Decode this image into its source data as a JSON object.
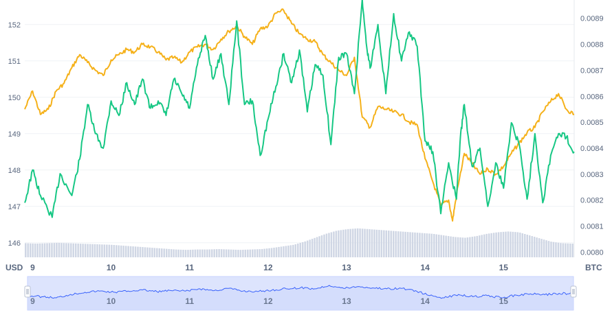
{
  "chart_data": {
    "type": "line",
    "units": {
      "left": "USD",
      "right": "BTC"
    },
    "x_ticks": [
      "9",
      "10",
      "11",
      "12",
      "13",
      "14",
      "15"
    ],
    "y_left": {
      "ticks": [
        "146",
        "147",
        "148",
        "149",
        "150",
        "151",
        "152"
      ],
      "range": [
        145.6,
        152.6
      ]
    },
    "y_right": {
      "ticks": [
        "0.0080",
        "0.0081",
        "0.0082",
        "0.0083",
        "0.0084",
        "0.0085",
        "0.0086",
        "0.0087",
        "0.0088",
        "0.0089"
      ],
      "range": [
        0.00798,
        0.00896
      ]
    },
    "x_range": [
      8.9,
      15.9
    ],
    "grid": true,
    "colors": {
      "usd": "#16c784",
      "btc": "#f5b11a",
      "volume": "#cfd6e4",
      "navigator_line": "#3861fb",
      "navigator_fill": "#dde4fd"
    },
    "series": [
      {
        "axis": "left",
        "x": [
          8.9,
          9.0,
          9.1,
          9.25,
          9.35,
          9.5,
          9.6,
          9.7,
          9.8,
          9.9,
          10.0,
          10.1,
          10.2,
          10.3,
          10.4,
          10.5,
          10.6,
          10.7,
          10.8,
          10.9,
          11.0,
          11.1,
          11.2,
          11.3,
          11.4,
          11.5,
          11.6,
          11.7,
          11.8,
          11.9,
          12.0,
          12.1,
          12.2,
          12.3,
          12.4,
          12.5,
          12.6,
          12.7,
          12.8,
          12.9,
          13.0,
          13.1,
          13.2,
          13.25,
          13.3,
          13.4,
          13.5,
          13.6,
          13.7,
          13.8,
          13.9,
          14.0,
          14.1,
          14.2,
          14.3,
          14.4,
          14.45,
          14.5,
          14.6,
          14.7,
          14.8,
          14.9,
          15.0,
          15.1,
          15.2,
          15.3,
          15.4,
          15.5,
          15.6,
          15.7,
          15.8,
          15.9
        ],
        "values": [
          147.1,
          148.0,
          147.3,
          146.7,
          147.9,
          147.3,
          148.3,
          149.8,
          149.0,
          148.6,
          149.9,
          149.5,
          150.4,
          149.8,
          150.5,
          149.7,
          149.9,
          149.5,
          150.5,
          150.1,
          149.7,
          150.9,
          151.7,
          150.5,
          151.2,
          149.8,
          152.1,
          149.8,
          149.9,
          148.4,
          149.4,
          150.3,
          151.2,
          150.4,
          151.3,
          149.6,
          150.9,
          150.6,
          148.7,
          151.1,
          151.2,
          150.1,
          152.7,
          151.5,
          150.8,
          152.0,
          150.1,
          152.3,
          151.0,
          151.8,
          151.4,
          148.8,
          148.5,
          146.8,
          148.2,
          147.2,
          148.9,
          149.8,
          148.1,
          148.6,
          147.0,
          148.2,
          147.5,
          149.3,
          148.7,
          147.2,
          149.0,
          147.1,
          148.4,
          149.0,
          148.9,
          148.5
        ]
      },
      {
        "axis": "right",
        "x": [
          8.9,
          9.0,
          9.1,
          9.2,
          9.3,
          9.4,
          9.5,
          9.6,
          9.7,
          9.8,
          9.9,
          10.0,
          10.1,
          10.2,
          10.3,
          10.4,
          10.5,
          10.6,
          10.7,
          10.8,
          10.9,
          11.0,
          11.1,
          11.2,
          11.3,
          11.4,
          11.5,
          11.6,
          11.7,
          11.8,
          11.9,
          12.0,
          12.1,
          12.2,
          12.3,
          12.4,
          12.5,
          12.6,
          12.7,
          12.8,
          12.9,
          13.0,
          13.1,
          13.2,
          13.3,
          13.4,
          13.5,
          13.6,
          13.7,
          13.8,
          13.9,
          14.0,
          14.1,
          14.2,
          14.3,
          14.35,
          14.4,
          14.5,
          14.6,
          14.7,
          14.8,
          14.9,
          15.0,
          15.1,
          15.2,
          15.3,
          15.4,
          15.5,
          15.6,
          15.7,
          15.8,
          15.9
        ],
        "values": [
          0.00855,
          0.00862,
          0.00853,
          0.00855,
          0.00862,
          0.00865,
          0.00871,
          0.00876,
          0.00873,
          0.0087,
          0.00868,
          0.00874,
          0.00876,
          0.00878,
          0.00877,
          0.0088,
          0.00879,
          0.00877,
          0.00874,
          0.00875,
          0.00873,
          0.00877,
          0.00879,
          0.0088,
          0.00878,
          0.00882,
          0.00885,
          0.00887,
          0.00883,
          0.0088,
          0.00886,
          0.00887,
          0.00892,
          0.00893,
          0.00888,
          0.00884,
          0.00882,
          0.00881,
          0.00876,
          0.00873,
          0.0087,
          0.00868,
          0.00875,
          0.00852,
          0.00848,
          0.00856,
          0.00855,
          0.00854,
          0.00853,
          0.0085,
          0.00849,
          0.00836,
          0.00827,
          0.00818,
          0.0082,
          0.00812,
          0.00822,
          0.00838,
          0.00834,
          0.0083,
          0.00832,
          0.0083,
          0.00833,
          0.00838,
          0.00842,
          0.00846,
          0.00848,
          0.00854,
          0.00858,
          0.00861,
          0.00855,
          0.00853
        ]
      }
    ],
    "volume": [
      0.36,
      0.35,
      0.36,
      0.37,
      0.36,
      0.35,
      0.34,
      0.33,
      0.32,
      0.3,
      0.28,
      0.26,
      0.24,
      0.22,
      0.2,
      0.19,
      0.2,
      0.2,
      0.21,
      0.2,
      0.19,
      0.2,
      0.21,
      0.24,
      0.28,
      0.32,
      0.4,
      0.5,
      0.6,
      0.68,
      0.72,
      0.74,
      0.72,
      0.7,
      0.68,
      0.66,
      0.64,
      0.62,
      0.6,
      0.56,
      0.52,
      0.5,
      0.54,
      0.6,
      0.64,
      0.66,
      0.64,
      0.56,
      0.48,
      0.4,
      0.36,
      0.35
    ],
    "navigator": [
      0.4,
      0.35,
      0.3,
      0.45,
      0.55,
      0.6,
      0.55,
      0.6,
      0.65,
      0.58,
      0.62,
      0.6,
      0.7,
      0.62,
      0.72,
      0.6,
      0.58,
      0.64,
      0.7,
      0.75,
      0.7,
      0.85,
      0.72,
      0.8,
      0.74,
      0.7,
      0.72,
      0.62,
      0.4,
      0.3,
      0.45,
      0.35,
      0.4,
      0.3,
      0.42,
      0.48,
      0.44,
      0.5,
      0.48
    ]
  }
}
